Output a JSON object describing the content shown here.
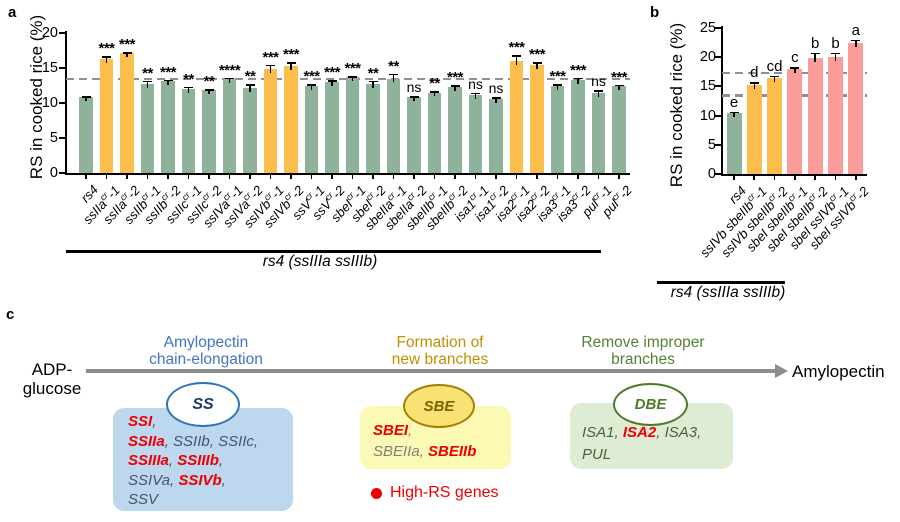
{
  "panels": {
    "a": "a",
    "b": "b",
    "c": "c"
  },
  "colors": {
    "green_bar": "#8fb29a",
    "orange_bar": "#fbbe4d",
    "pink_bar": "#fa9d9b",
    "dash_gray": "#909090",
    "arrow_gray": "#8c8c8c",
    "highlight_red": "#ee0000",
    "blue_header": "#4472c4",
    "gold_header": "#bf9000",
    "green_header": "#538135"
  },
  "chart_data": [
    {
      "id": "a",
      "type": "bar",
      "title": "",
      "ylabel": "RS in cooked rice (%)",
      "ylim": [
        0,
        20
      ],
      "yticks": [
        0,
        5,
        10,
        15,
        20
      ],
      "dashed_lines": [
        13.5
      ],
      "grid": false,
      "group_label": "rs4 (ssIIIa ssIIIb)",
      "bars": [
        {
          "base": "rs4",
          "sup": "",
          "num": "",
          "value": 10.8,
          "err": 0.2,
          "color": "green",
          "sig": ""
        },
        {
          "base": "ssIIa",
          "sup": "cr",
          "num": "-1",
          "value": 16.3,
          "err": 0.4,
          "color": "orange",
          "sig": "***"
        },
        {
          "base": "ssIIa",
          "sup": "cr",
          "num": "-2",
          "value": 17.1,
          "err": 0.15,
          "color": "orange",
          "sig": "***"
        },
        {
          "base": "ssIIb",
          "sup": "cr",
          "num": "-1",
          "value": 12.7,
          "err": 0.5,
          "color": "green",
          "sig": "**"
        },
        {
          "base": "ssIIb",
          "sup": "cr",
          "num": "-2",
          "value": 13.1,
          "err": 0.2,
          "color": "green",
          "sig": "***"
        },
        {
          "base": "ssIIc",
          "sup": "cr",
          "num": "-1",
          "value": 12.0,
          "err": 0.3,
          "color": "green",
          "sig": "**"
        },
        {
          "base": "ssIIc",
          "sup": "cr",
          "num": "-2",
          "value": 11.8,
          "err": 0.2,
          "color": "green",
          "sig": "**"
        },
        {
          "base": "ssIVa",
          "sup": "cr",
          "num": "-1",
          "value": 13.4,
          "err": 0.2,
          "color": "green",
          "sig": "****"
        },
        {
          "base": "ssIVa",
          "sup": "cr",
          "num": "-2",
          "value": 12.2,
          "err": 0.5,
          "color": "green",
          "sig": "**"
        },
        {
          "base": "ssIVb",
          "sup": "cr",
          "num": "-1",
          "value": 14.9,
          "err": 0.6,
          "color": "orange",
          "sig": "***"
        },
        {
          "base": "ssIVb",
          "sup": "cr",
          "num": "-2",
          "value": 15.3,
          "err": 0.5,
          "color": "orange",
          "sig": "***"
        },
        {
          "base": "ssV",
          "sup": "cr",
          "num": "-1",
          "value": 12.4,
          "err": 0.25,
          "color": "green",
          "sig": "***"
        },
        {
          "base": "ssV",
          "sup": "cr",
          "num": "-2",
          "value": 13.0,
          "err": 0.25,
          "color": "green",
          "sig": "***"
        },
        {
          "base": "sbeI",
          "sup": "cr",
          "num": "-1",
          "value": 13.7,
          "err": 0.15,
          "color": "green",
          "sig": "***"
        },
        {
          "base": "sbeI",
          "sup": "cr",
          "num": "-2",
          "value": 12.7,
          "err": 0.5,
          "color": "green",
          "sig": "**"
        },
        {
          "base": "sbeIIa",
          "sup": "cr",
          "num": "-1",
          "value": 13.5,
          "err": 0.7,
          "color": "green",
          "sig": "**"
        },
        {
          "base": "sbeIIa",
          "sup": "cr",
          "num": "-2",
          "value": 10.8,
          "err": 0.15,
          "color": "green",
          "sig": "ns"
        },
        {
          "base": "sbeIIb",
          "sup": "cr",
          "num": "-1",
          "value": 11.5,
          "err": 0.2,
          "color": "green",
          "sig": "**"
        },
        {
          "base": "sbeIIb",
          "sup": "cr",
          "num": "-2",
          "value": 12.3,
          "err": 0.25,
          "color": "green",
          "sig": "***"
        },
        {
          "base": "isa1",
          "sup": "cr",
          "num": "-1",
          "value": 11.1,
          "err": 0.4,
          "color": "green",
          "sig": "ns"
        },
        {
          "base": "isa1",
          "sup": "cr",
          "num": "-2",
          "value": 10.6,
          "err": 0.25,
          "color": "green",
          "sig": "ns"
        },
        {
          "base": "isa2",
          "sup": "cr",
          "num": "-1",
          "value": 16.0,
          "err": 0.8,
          "color": "orange",
          "sig": "***"
        },
        {
          "base": "isa2",
          "sup": "cr",
          "num": "-2",
          "value": 15.4,
          "err": 0.4,
          "color": "orange",
          "sig": "***"
        },
        {
          "base": "isa3",
          "sup": "cr",
          "num": "-1",
          "value": 12.4,
          "err": 0.3,
          "color": "green",
          "sig": "***"
        },
        {
          "base": "isa3",
          "sup": "cr",
          "num": "-2",
          "value": 13.3,
          "err": 0.3,
          "color": "green",
          "sig": "***"
        },
        {
          "base": "pul",
          "sup": "cr",
          "num": "-1",
          "value": 11.4,
          "err": 0.4,
          "color": "green",
          "sig": "ns"
        },
        {
          "base": "pul",
          "sup": "cr",
          "num": "-2",
          "value": 12.4,
          "err": 0.2,
          "color": "green",
          "sig": "***"
        }
      ]
    },
    {
      "id": "b",
      "type": "bar",
      "title": "",
      "ylabel": "RS in cooked rice (%)",
      "ylim": [
        0,
        25
      ],
      "yticks": [
        0,
        5,
        10,
        15,
        20,
        25
      ],
      "dashed_lines": [
        17.3,
        13.5
      ],
      "grid": false,
      "group_label": "rs4 (ssIIIa ssIIIb)",
      "bars": [
        {
          "base": "rs4",
          "sup": "",
          "num": "",
          "value": 10.4,
          "err": 0.3,
          "color": "green",
          "letter": "e"
        },
        {
          "base": "ssIVb sbeIIb",
          "sup": "cr",
          "num": "-1",
          "value": 15.2,
          "err": 0.5,
          "color": "orange",
          "letter": "d"
        },
        {
          "base": "ssIVb sbeIIb",
          "sup": "cr",
          "num": "-2",
          "value": 16.5,
          "err": 0.3,
          "color": "orange",
          "letter": "cd"
        },
        {
          "base": "sbeI sbeIIb",
          "sup": "cr",
          "num": "-1",
          "value": 17.9,
          "err": 0.4,
          "color": "pink",
          "letter": "c"
        },
        {
          "base": "sbeI sbeIIb",
          "sup": "cr",
          "num": "-2",
          "value": 19.9,
          "err": 0.9,
          "color": "pink",
          "letter": "b"
        },
        {
          "base": "sbeI ssIVb",
          "sup": "cr",
          "num": "-1",
          "value": 20.0,
          "err": 0.8,
          "color": "pink",
          "letter": "b"
        },
        {
          "base": "sbeI ssIVb",
          "sup": "cr",
          "num": "-2",
          "value": 22.5,
          "err": 0.5,
          "color": "pink",
          "letter": "a"
        }
      ]
    }
  ],
  "pathway": {
    "substrate_line1": "ADP-",
    "substrate_line2": "glucose",
    "product": "Amylopectin",
    "stages": [
      {
        "header_line1": "Amylopectin",
        "header_line2": "chain-elongation",
        "enzyme": "SS",
        "gene_lines": [
          [
            {
              "n": "SSI",
              "h": true
            }
          ],
          [
            {
              "n": "SSIIa",
              "h": true
            },
            {
              "n": "SSIIb",
              "h": false
            },
            {
              "n": "SSIIc",
              "h": false
            }
          ],
          [
            {
              "n": "SSIIIa",
              "h": true
            },
            {
              "n": "SSIIIb",
              "h": true
            }
          ],
          [
            {
              "n": "SSIVa",
              "h": false
            },
            {
              "n": "SSIVb",
              "h": true
            }
          ],
          [
            {
              "n": "SSV",
              "h": false
            }
          ]
        ]
      },
      {
        "header_line1": "Formation of",
        "header_line2": "new branches",
        "enzyme": "SBE",
        "gene_lines": [
          [
            {
              "n": "SBEI",
              "h": true
            }
          ],
          [
            {
              "n": "SBEIIa",
              "h": false
            },
            {
              "n": "SBEIIb",
              "h": true
            }
          ]
        ]
      },
      {
        "header_line1": "Remove improper",
        "header_line2": "branches",
        "enzyme": "DBE",
        "gene_lines": [
          [
            {
              "n": "ISA1",
              "h": false
            },
            {
              "n": "ISA2",
              "h": true
            },
            {
              "n": "ISA3",
              "h": false
            }
          ],
          [
            {
              "n": "PUL",
              "h": false
            }
          ]
        ]
      }
    ],
    "legend_label": "High-RS genes"
  }
}
